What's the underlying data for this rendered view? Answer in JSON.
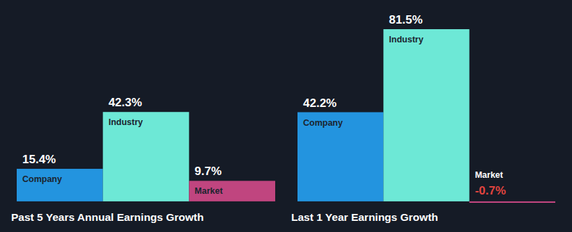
{
  "chart_data": [
    {
      "type": "bar",
      "title": "Past 5 Years Annual Earnings Growth",
      "categories": [
        "Company",
        "Industry",
        "Market"
      ],
      "values": [
        15.4,
        42.3,
        9.7
      ],
      "value_labels": [
        "15.4%",
        "42.3%",
        "9.7%"
      ],
      "colors": [
        "#2394df",
        "#6de8d6",
        "#c0457f"
      ],
      "data_labels": true,
      "tick_labels": false
    },
    {
      "type": "bar",
      "title": "Last 1 Year Earnings Growth",
      "categories": [
        "Company",
        "Industry",
        "Market"
      ],
      "values": [
        42.2,
        81.5,
        -0.7
      ],
      "value_labels": [
        "42.2%",
        "81.5%",
        "-0.7%"
      ],
      "colors": [
        "#2394df",
        "#6de8d6",
        "#c0457f"
      ],
      "data_labels": true,
      "tick_labels": false
    }
  ]
}
